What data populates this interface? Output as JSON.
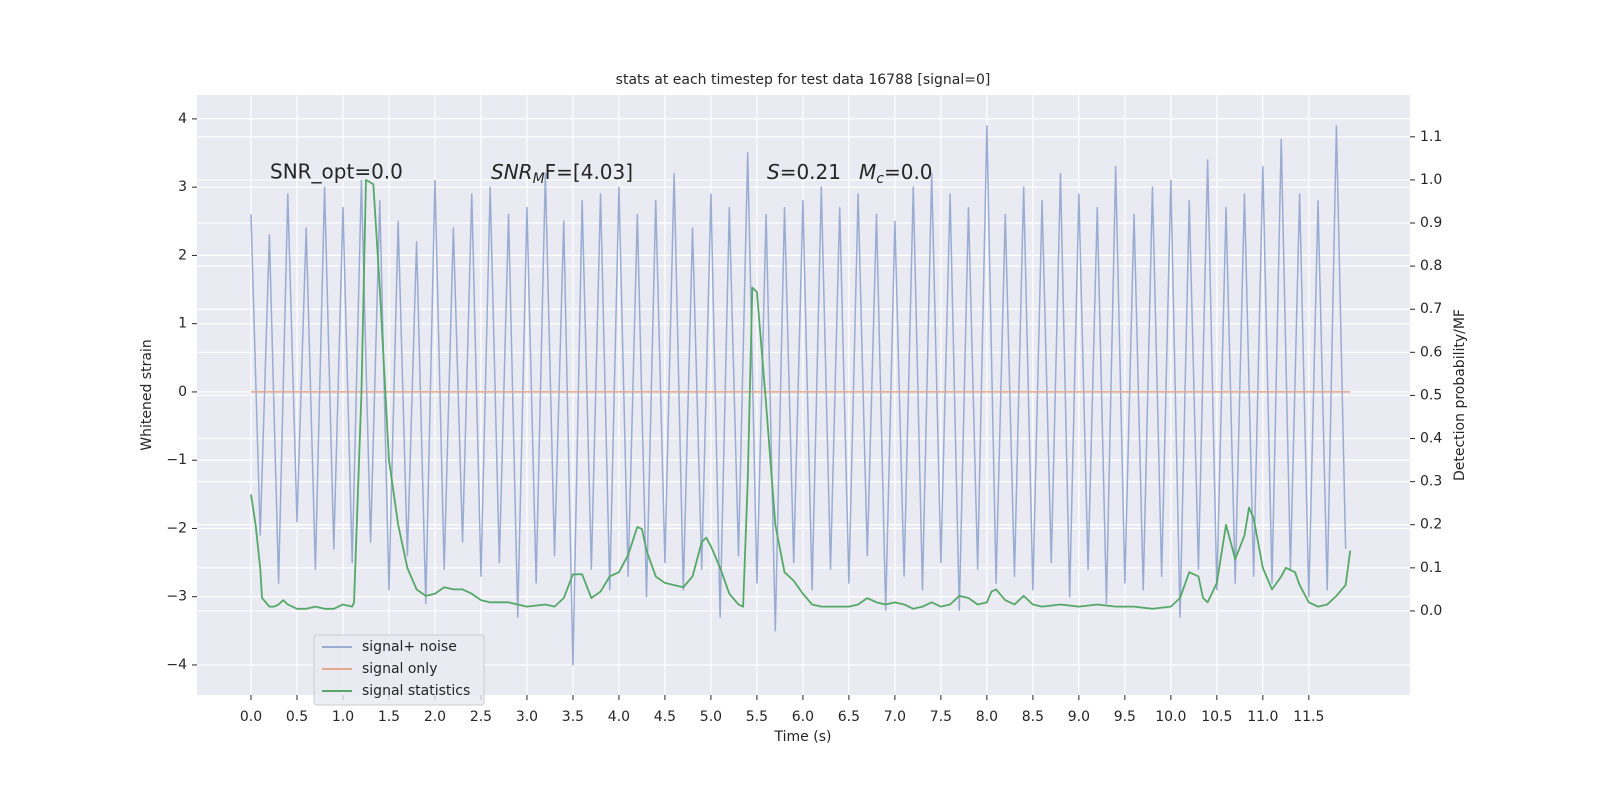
{
  "chart_data": {
    "type": "line",
    "title": "stats at each timestep for test data 16788 [signal=0]",
    "xlabel": "Time (s)",
    "ylabel": "Whitened strain",
    "y2label": "Detection probability/MF",
    "xlim": [
      -0.587,
      12.6
    ],
    "ylim": [
      -4.44,
      4.35
    ],
    "y2lim": [
      -0.195,
      1.197
    ],
    "xticks": [
      {
        "value": 0,
        "label": "0.0"
      },
      0.5,
      {
        "value": 1,
        "label": "1.0"
      },
      1.5,
      {
        "value": 2,
        "label": "2.0"
      },
      2.5,
      {
        "value": 3,
        "label": "3.0"
      },
      3.5,
      {
        "value": 4,
        "label": "4.0"
      },
      4.5,
      {
        "value": 5,
        "label": "5.0"
      },
      5.5,
      {
        "value": 6,
        "label": "6.0"
      },
      6.5,
      {
        "value": 7,
        "label": "7.0"
      },
      7.5,
      {
        "value": 8,
        "label": "8.0"
      },
      8.5,
      {
        "value": 9,
        "label": "9.0"
      },
      9.5,
      {
        "value": 10,
        "label": "10.0"
      },
      10.5,
      {
        "value": 11,
        "label": "11.0"
      },
      11.5
    ],
    "yticks": [
      {
        "value": -4,
        "label": "−4"
      },
      {
        "value": -3,
        "label": "−3"
      },
      {
        "value": -2,
        "label": "−2"
      },
      {
        "value": -1,
        "label": "−1"
      },
      0,
      1,
      2,
      3,
      4
    ],
    "y2ticks": [
      {
        "value": 0,
        "label": "0.0"
      },
      0.1,
      0.2,
      0.3,
      0.4,
      0.5,
      0.6,
      0.7,
      0.8,
      0.9,
      {
        "value": 1,
        "label": "1.0"
      },
      1.1
    ],
    "grid": true,
    "legend": "lower left",
    "annotations": [
      "SNR_opt=0.0",
      {
        "var": "SNR",
        "sub": "M",
        "rest": "F=[4.03]"
      },
      {
        "var": "S",
        "rest": "=0.21"
      },
      {
        "var": "M",
        "sub": "c",
        "rest": "=0.0"
      }
    ],
    "series": [
      {
        "name": "signal+ noise",
        "color": "#9aacd2",
        "x": [
          0.0,
          0.1,
          0.2,
          0.3,
          0.4,
          0.5,
          0.6,
          0.7,
          0.8,
          0.9,
          1.0,
          1.1,
          1.2,
          1.3,
          1.4,
          1.5,
          1.6,
          1.7,
          1.8,
          1.9,
          2.0,
          2.1,
          2.2,
          2.3,
          2.4,
          2.5,
          2.6,
          2.7,
          2.8,
          2.9,
          3.0,
          3.1,
          3.2,
          3.3,
          3.4,
          3.5,
          3.6,
          3.7,
          3.8,
          3.9,
          4.0,
          4.1,
          4.2,
          4.3,
          4.4,
          4.5,
          4.6,
          4.7,
          4.8,
          4.9,
          5.0,
          5.1,
          5.2,
          5.3,
          5.4,
          5.5,
          5.6,
          5.7,
          5.8,
          5.9,
          6.0,
          6.1,
          6.2,
          6.3,
          6.4,
          6.5,
          6.6,
          6.7,
          6.8,
          6.9,
          7.0,
          7.1,
          7.2,
          7.3,
          7.4,
          7.5,
          7.6,
          7.7,
          7.8,
          7.9,
          8.0,
          8.1,
          8.2,
          8.3,
          8.4,
          8.5,
          8.6,
          8.7,
          8.8,
          8.9,
          9.0,
          9.1,
          9.2,
          9.3,
          9.4,
          9.5,
          9.6,
          9.7,
          9.8,
          9.9,
          10.0,
          10.1,
          10.2,
          10.3,
          10.4,
          10.5,
          10.6,
          10.7,
          10.8,
          10.9,
          11.0,
          11.1,
          11.2,
          11.3,
          11.4,
          11.5,
          11.6,
          11.7,
          11.8,
          11.9
        ],
        "values": [
          2.6,
          -2.1,
          2.3,
          -2.8,
          2.9,
          -1.9,
          2.4,
          -2.6,
          3.0,
          -2.3,
          2.7,
          -2.5,
          3.1,
          -2.2,
          2.8,
          -2.9,
          2.5,
          -2.4,
          2.2,
          -3.1,
          3.1,
          -2.6,
          2.4,
          -2.2,
          2.9,
          -2.7,
          3.0,
          -2.5,
          2.6,
          -3.3,
          2.7,
          -2.8,
          3.2,
          -2.4,
          2.5,
          -4.0,
          2.8,
          -2.6,
          2.9,
          -2.9,
          3.0,
          -2.7,
          2.6,
          -3.0,
          2.8,
          -2.5,
          3.2,
          -2.9,
          2.4,
          -2.6,
          2.9,
          -3.3,
          2.7,
          -2.4,
          3.5,
          -2.8,
          2.6,
          -3.5,
          2.7,
          -2.5,
          2.8,
          -2.9,
          3.0,
          -2.6,
          2.7,
          -2.8,
          2.9,
          -2.4,
          2.6,
          -3.2,
          2.5,
          -2.7,
          3.0,
          -2.9,
          3.2,
          -2.5,
          2.9,
          -3.2,
          2.7,
          -2.6,
          3.9,
          -2.8,
          2.6,
          -2.7,
          3.0,
          -2.9,
          2.8,
          -2.5,
          3.2,
          -3.0,
          2.9,
          -2.6,
          2.7,
          -3.1,
          3.3,
          -2.8,
          2.6,
          -2.9,
          3.0,
          -2.7,
          3.1,
          -3.3,
          2.8,
          -2.6,
          3.4,
          -2.9,
          2.7,
          -2.8,
          2.9,
          -2.7,
          3.3,
          -2.8,
          3.7,
          -2.6,
          2.9,
          -3.0,
          2.8,
          -2.9,
          3.9,
          -2.3
        ]
      },
      {
        "name": "signal only",
        "color": "#e8a98f",
        "x": [
          0.0,
          11.95
        ],
        "values": [
          0,
          0
        ]
      },
      {
        "name": "signal statistics",
        "color": "#55a868",
        "axis": "y2",
        "x": [
          0.0,
          0.05,
          0.1,
          0.12,
          0.2,
          0.25,
          0.3,
          0.35,
          0.4,
          0.5,
          0.6,
          0.7,
          0.8,
          0.9,
          1.0,
          1.1,
          1.12,
          1.2,
          1.25,
          1.33,
          1.4,
          1.5,
          1.6,
          1.7,
          1.8,
          1.9,
          2.0,
          2.1,
          2.2,
          2.3,
          2.4,
          2.5,
          2.6,
          2.8,
          2.9,
          3.0,
          3.2,
          3.3,
          3.4,
          3.5,
          3.6,
          3.7,
          3.8,
          3.9,
          4.0,
          4.1,
          4.2,
          4.25,
          4.3,
          4.4,
          4.5,
          4.6,
          4.7,
          4.8,
          4.9,
          4.95,
          5.0,
          5.1,
          5.2,
          5.3,
          5.35,
          5.4,
          5.45,
          5.5,
          5.6,
          5.7,
          5.8,
          5.9,
          6.0,
          6.1,
          6.2,
          6.3,
          6.5,
          6.6,
          6.7,
          6.8,
          6.9,
          7.0,
          7.1,
          7.2,
          7.3,
          7.4,
          7.5,
          7.6,
          7.7,
          7.8,
          7.9,
          8.0,
          8.05,
          8.1,
          8.2,
          8.3,
          8.4,
          8.5,
          8.6,
          8.8,
          9.0,
          9.2,
          9.4,
          9.6,
          9.8,
          10.0,
          10.1,
          10.2,
          10.3,
          10.35,
          10.4,
          10.5,
          10.6,
          10.7,
          10.8,
          10.85,
          10.9,
          11.0,
          11.1,
          11.2,
          11.25,
          11.35,
          11.4,
          11.5,
          11.6,
          11.7,
          11.8,
          11.9,
          11.95
        ],
        "values": [
          0.27,
          0.2,
          0.1,
          0.03,
          0.01,
          0.01,
          0.015,
          0.025,
          0.015,
          0.005,
          0.005,
          0.01,
          0.005,
          0.005,
          0.015,
          0.01,
          0.02,
          0.5,
          1.0,
          0.99,
          0.75,
          0.35,
          0.2,
          0.1,
          0.05,
          0.035,
          0.04,
          0.055,
          0.05,
          0.05,
          0.04,
          0.025,
          0.02,
          0.02,
          0.015,
          0.01,
          0.015,
          0.01,
          0.03,
          0.085,
          0.085,
          0.03,
          0.045,
          0.08,
          0.09,
          0.13,
          0.195,
          0.19,
          0.14,
          0.08,
          0.065,
          0.06,
          0.055,
          0.08,
          0.16,
          0.17,
          0.15,
          0.1,
          0.04,
          0.015,
          0.01,
          0.3,
          0.75,
          0.74,
          0.48,
          0.2,
          0.09,
          0.07,
          0.04,
          0.015,
          0.01,
          0.01,
          0.01,
          0.015,
          0.03,
          0.02,
          0.015,
          0.02,
          0.015,
          0.005,
          0.01,
          0.02,
          0.01,
          0.015,
          0.035,
          0.03,
          0.015,
          0.02,
          0.045,
          0.05,
          0.025,
          0.015,
          0.035,
          0.015,
          0.01,
          0.015,
          0.01,
          0.015,
          0.01,
          0.01,
          0.005,
          0.01,
          0.03,
          0.09,
          0.08,
          0.03,
          0.02,
          0.065,
          0.2,
          0.12,
          0.175,
          0.24,
          0.215,
          0.1,
          0.05,
          0.08,
          0.1,
          0.09,
          0.06,
          0.02,
          0.01,
          0.015,
          0.035,
          0.06,
          0.14
        ]
      }
    ]
  }
}
